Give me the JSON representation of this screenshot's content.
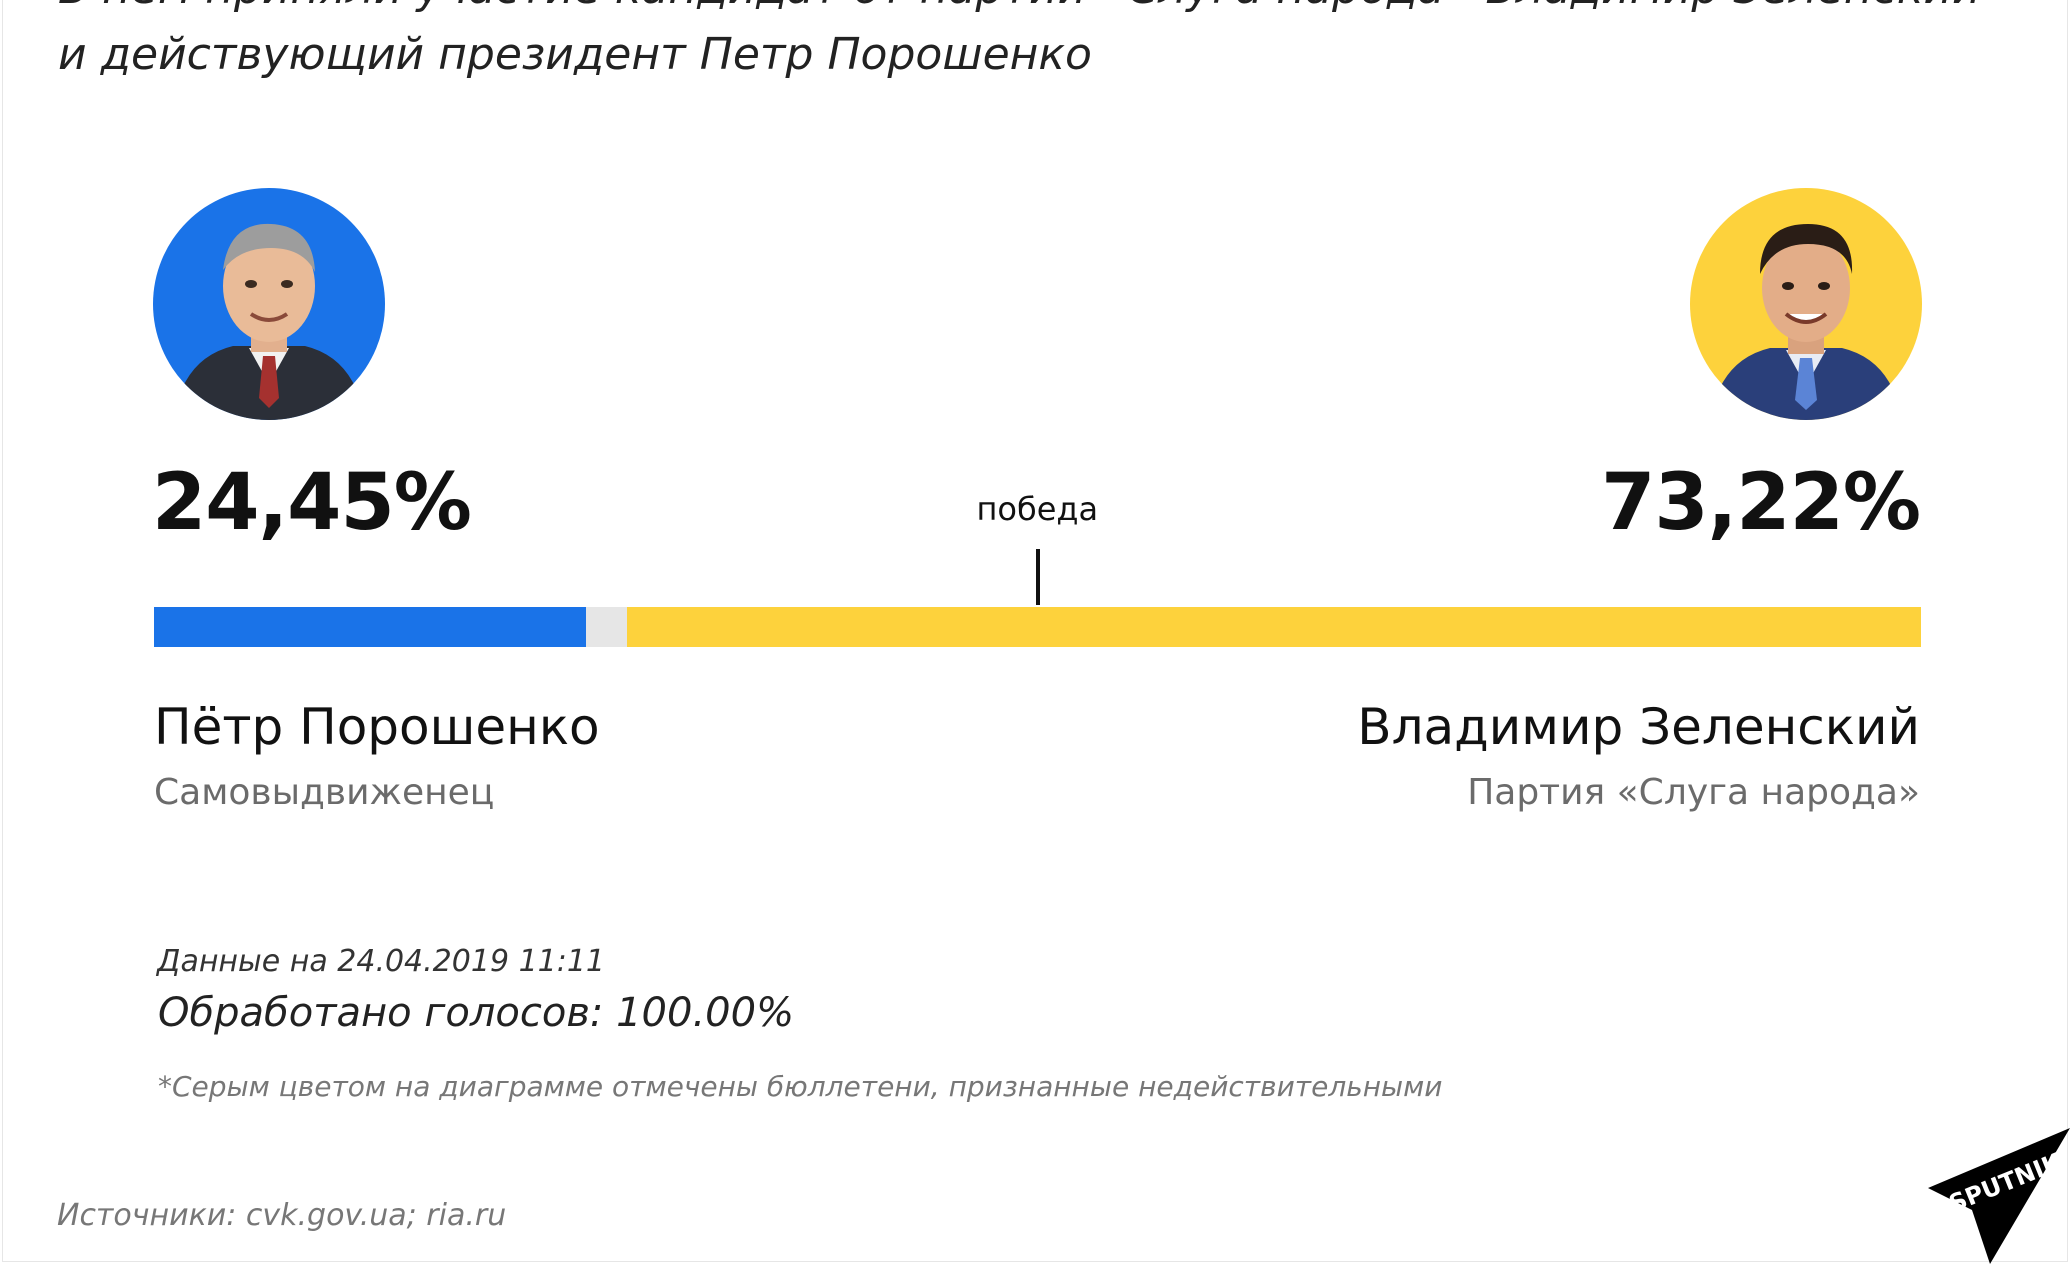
{
  "intro": {
    "line1": "В нем приняли участие кандидат от партии «Слуга народа» Владимир Зеленский",
    "line2": "и действующий президент Петр Порошенко"
  },
  "chart_data": {
    "type": "bar",
    "title": "",
    "win_label": "победа",
    "win_threshold": 50,
    "total": 100,
    "series": [
      {
        "key": "poroshenko",
        "name": "Пётр Порошенко",
        "subtitle": "Самовыдвиженец",
        "value": 24.45,
        "value_label": "24,45%",
        "color": "#1a73e8"
      },
      {
        "key": "invalid",
        "value": 2.33,
        "color": "#e6e6e6"
      },
      {
        "key": "zelensky",
        "name": "Владимир Зеленский",
        "subtitle": "Партия «Слуга народа»",
        "value": 73.22,
        "value_label": "73,22%",
        "color": "#fdd23c"
      }
    ]
  },
  "meta": {
    "data_date": "Данные на 24.04.2019 11:11",
    "processed": "Обработано голосов: 100.00%",
    "footnote": "*Серым цветом на диаграмме отмечены бюллетени, признанные недействительными",
    "sources": "Источники: cvk.gov.ua; ria.ru"
  },
  "brand": {
    "logo_text": "SPUTNIK"
  },
  "icons": {
    "left_avatar": "candidate-photo-icon",
    "right_avatar": "candidate-photo-icon"
  },
  "colors": {
    "left_avatar_bg": "#1a73e8",
    "right_avatar_bg": "#fdd23c"
  }
}
